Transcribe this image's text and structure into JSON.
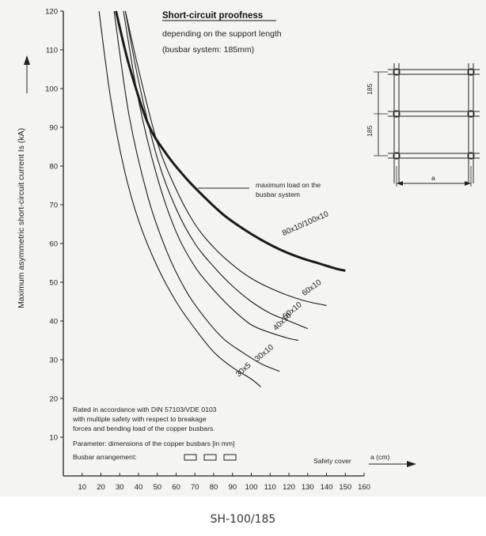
{
  "chart_data": {
    "type": "line",
    "title": "Short-circuit proofness",
    "subtitle": "depending on the support length",
    "subtitle2": "(busbar system: 185mm)",
    "ylabel": "Maximum asymmetric short-circuit current   Is  (kA)",
    "xlabel": "a  (cm)",
    "xlabel_prefix": "Safety cover",
    "xlim": [
      0,
      160
    ],
    "ylim": [
      0,
      120
    ],
    "x_ticks": [
      "10",
      "20",
      "30",
      "40",
      "50",
      "60",
      "70",
      "80",
      "90",
      "100",
      "110",
      "120",
      "130",
      "140",
      "150",
      "160"
    ],
    "y_ticks": [
      "10",
      "20",
      "30",
      "40",
      "50",
      "60",
      "70",
      "80",
      "90",
      "100",
      "110",
      "120"
    ],
    "grid": false,
    "series": [
      {
        "name": "30x5",
        "x": [
          19,
          25,
          32,
          40,
          50,
          60,
          70,
          80,
          90,
          100,
          105
        ],
        "y": [
          120,
          98,
          80,
          66,
          54,
          45,
          38,
          32,
          28,
          25,
          23
        ]
      },
      {
        "name": "30x10",
        "x": [
          27,
          35,
          45,
          55,
          65,
          75,
          85,
          95,
          105,
          115
        ],
        "y": [
          120,
          93,
          72,
          58,
          48,
          41,
          35.5,
          32,
          29,
          27
        ]
      },
      {
        "name": "40x10",
        "x": [
          32,
          40,
          50,
          60,
          70,
          80,
          90,
          100,
          110,
          120,
          125
        ],
        "y": [
          120,
          97,
          77,
          63,
          54,
          48,
          43,
          39,
          37,
          35.5,
          35
        ]
      },
      {
        "name": "50x10",
        "x": [
          33,
          40,
          50,
          60,
          70,
          80,
          90,
          100,
          110,
          120,
          130
        ],
        "y": [
          120,
          102,
          82,
          69,
          60,
          54,
          49,
          45,
          42,
          40,
          38
        ]
      },
      {
        "name": "60x10",
        "x": [
          33,
          40,
          50,
          60,
          70,
          80,
          90,
          100,
          110,
          120,
          130,
          140
        ],
        "y": [
          120,
          105,
          86,
          74,
          65,
          59,
          54.5,
          51,
          48.5,
          46.5,
          45,
          44
        ]
      },
      {
        "name": "80x10/100x10",
        "x": [
          28,
          35,
          45,
          55,
          65,
          75,
          85,
          95,
          105,
          115,
          125,
          135,
          145,
          150
        ],
        "y": [
          120,
          106,
          91,
          83,
          77,
          72,
          67.5,
          64,
          61,
          58.5,
          56.5,
          55,
          53.5,
          53
        ]
      }
    ],
    "annotation": "maximum load on the busbar system",
    "notes": [
      "Rated in accordance with DIN 57103/VDE 0103",
      "with multiple safety with respect to breakage",
      "forces and bending load of the copper busbars."
    ],
    "parameter_note": "Parameter: dimensions of the copper busbars  [in mm]",
    "arrangement_label": "Busbar arrangement:",
    "inset": {
      "dim1": "185",
      "dim2": "185",
      "a_label": "a"
    }
  },
  "caption": "SH-100/185"
}
